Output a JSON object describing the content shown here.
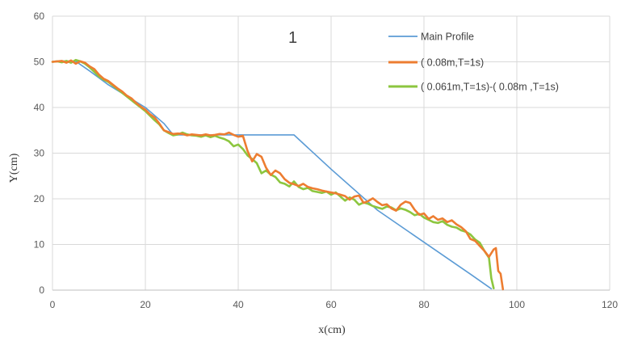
{
  "chart_data": {
    "type": "line",
    "title": "",
    "annotation": "1",
    "xlabel": "x(cm)",
    "ylabel": "Y(cm)",
    "xlim": [
      0,
      120
    ],
    "ylim": [
      0,
      60
    ],
    "xticks": [
      "0",
      "20",
      "40",
      "60",
      "80",
      "100",
      "120"
    ],
    "yticks": [
      "0",
      "10",
      "20",
      "30",
      "40",
      "50",
      "60"
    ],
    "grid": true,
    "legend_position": "top-right",
    "series": [
      {
        "name": "Main Profile",
        "color": "#5b9bd5",
        "x": [
          0,
          2,
          5,
          8,
          12,
          16,
          20,
          24,
          26,
          30,
          35,
          40,
          45,
          52,
          60,
          70,
          80,
          90,
          94.5
        ],
        "y": [
          50,
          50.2,
          50.1,
          48,
          45,
          42.5,
          40,
          36.5,
          34,
          34,
          34,
          34,
          34,
          34,
          26.5,
          17.5,
          10.5,
          3.5,
          0.3
        ]
      },
      {
        "name": "( 0.08m,T=1s)",
        "color": "#ed7d31",
        "x": [
          0,
          2,
          3,
          4,
          5,
          6,
          7,
          8,
          9,
          10,
          11,
          12,
          13,
          14,
          15,
          16,
          17,
          18,
          19,
          20,
          21,
          22,
          23,
          24,
          25,
          26,
          27,
          28,
          29,
          30,
          31,
          32,
          33,
          34,
          35,
          36,
          37,
          38,
          39,
          40,
          41,
          42,
          43,
          44,
          45,
          46,
          47,
          48,
          49,
          50,
          51,
          52,
          53,
          54,
          55,
          56,
          57,
          58,
          59,
          60,
          61,
          62,
          63,
          64,
          65,
          66,
          67,
          68,
          69,
          70,
          71,
          72,
          73,
          74,
          75,
          76,
          77,
          78,
          79,
          80,
          81,
          82,
          83,
          84,
          85,
          86,
          87,
          88,
          89,
          90,
          91,
          92,
          93,
          94,
          95,
          95.5,
          96,
          96.5,
          97
        ],
        "y": [
          50,
          50.2,
          49.8,
          50.3,
          49.6,
          50.1,
          49.8,
          49,
          48.4,
          47.2,
          46.3,
          45.8,
          45,
          44.2,
          43.5,
          42.6,
          42,
          41,
          40.2,
          39.5,
          38.5,
          37.8,
          36.5,
          35,
          34.6,
          34.2,
          34.3,
          34.2,
          33.9,
          34.1,
          34,
          33.9,
          34.1,
          33.9,
          34,
          34.2,
          34.1,
          34.5,
          34,
          33.6,
          33.8,
          30.5,
          28.2,
          29.8,
          29.2,
          26.8,
          25.2,
          26.2,
          25.6,
          24.3,
          23.5,
          23.2,
          22.8,
          23.3,
          22.6,
          22.3,
          22.1,
          21.8,
          21.6,
          21.4,
          21.2,
          20.9,
          20.6,
          19.8,
          20.5,
          20.7,
          19.1,
          19.5,
          20.1,
          19.3,
          18.6,
          18.8,
          17.9,
          17.4,
          18.7,
          19.4,
          19.1,
          17.6,
          16.5,
          16.8,
          15.6,
          16.2,
          15.4,
          15.7,
          14.9,
          15.3,
          14.4,
          13.8,
          12.9,
          11.2,
          10.8,
          9.7,
          8.6,
          7.3,
          8.9,
          9.2,
          4.2,
          3.6,
          0.2
        ]
      },
      {
        "name": "( 0.061m,T=1s)-( 0.08m ,T=1s)",
        "color": "#8cc63f",
        "x": [
          0,
          1,
          2,
          3,
          4,
          5,
          6,
          7,
          8,
          9,
          10,
          11,
          12,
          13,
          14,
          15,
          16,
          17,
          18,
          19,
          20,
          21,
          22,
          23,
          24,
          25,
          26,
          27,
          28,
          29,
          30,
          31,
          32,
          33,
          34,
          35,
          36,
          37,
          38,
          39,
          40,
          41,
          42,
          43,
          44,
          45,
          46,
          47,
          48,
          49,
          50,
          51,
          52,
          53,
          54,
          55,
          56,
          57,
          58,
          59,
          60,
          61,
          62,
          63,
          64,
          65,
          66,
          67,
          68,
          69,
          70,
          71,
          72,
          73,
          74,
          75,
          76,
          77,
          78,
          79,
          80,
          81,
          82,
          83,
          84,
          85,
          86,
          87,
          88,
          89,
          90,
          91,
          92,
          93,
          94,
          94.5,
          95
        ],
        "y": [
          50,
          50.1,
          49.9,
          50.2,
          49.8,
          50.4,
          50.1,
          49.6,
          48.8,
          47.8,
          46.8,
          46.1,
          45.6,
          44.8,
          44,
          43.2,
          42.4,
          41.6,
          40.8,
          40,
          39.2,
          38.2,
          37.2,
          36.3,
          35,
          34.4,
          33.9,
          34.1,
          34.5,
          34.1,
          33.9,
          33.8,
          33.6,
          33.9,
          33.5,
          33.8,
          33.4,
          33.1,
          32.6,
          31.5,
          31.9,
          30.9,
          29.5,
          28.7,
          27.8,
          25.6,
          26.2,
          25.3,
          24.8,
          23.6,
          23.3,
          22.7,
          23.8,
          22.6,
          22.1,
          22.4,
          21.7,
          21.5,
          21.3,
          21.6,
          20.9,
          21.4,
          20.5,
          19.6,
          20.3,
          19.8,
          18.7,
          19.2,
          18.9,
          18.4,
          18.1,
          17.8,
          18.3,
          18.1,
          17.5,
          17.9,
          17.6,
          17.1,
          16.4,
          16.7,
          15.9,
          15.4,
          14.9,
          14.7,
          15.1,
          14.3,
          13.9,
          13.7,
          13.1,
          12.8,
          12.2,
          11.1,
          10.4,
          8.6,
          7.1,
          2.6,
          0.4
        ]
      }
    ]
  }
}
